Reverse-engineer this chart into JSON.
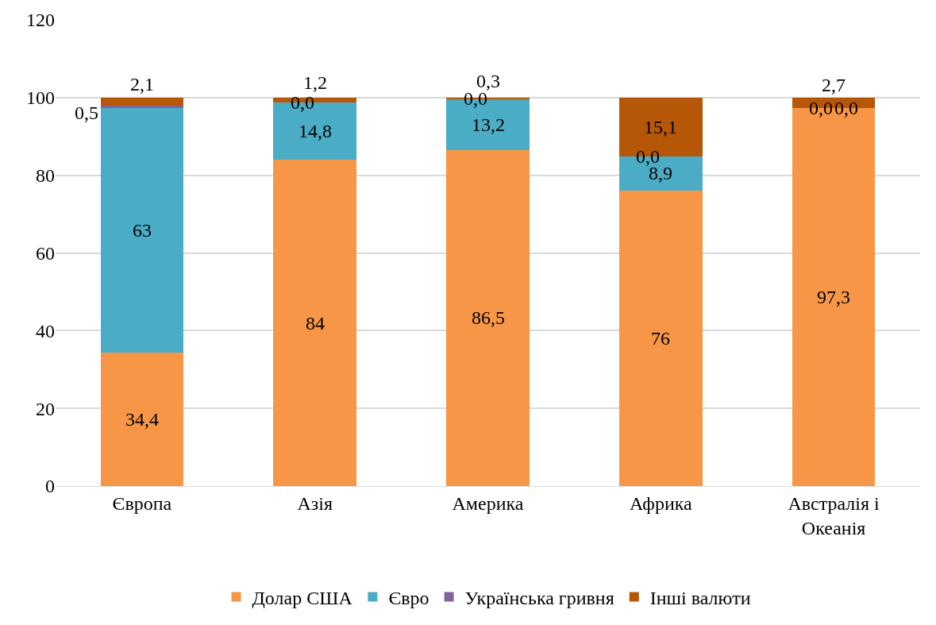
{
  "chart_data": {
    "type": "bar",
    "stacked": true,
    "categories": [
      "Європа",
      "Азія",
      "Америка",
      "Африка",
      "Австралія і Океанія"
    ],
    "series": [
      {
        "name": "Долар США",
        "color": "#f79646",
        "values": [
          34.4,
          84,
          86.5,
          76,
          97.3
        ],
        "value_labels": [
          "34,4",
          "84",
          "86,5",
          "76",
          "97,3"
        ]
      },
      {
        "name": "Євро",
        "color": "#4bacc6",
        "values": [
          63,
          14.8,
          13.2,
          8.9,
          0.0
        ],
        "value_labels": [
          "63",
          "14,8",
          "13,2",
          "8,9",
          "0,0"
        ]
      },
      {
        "name": "Українська гривня",
        "color": "#8064a2",
        "values": [
          0.5,
          0.0,
          0.0,
          0.0,
          0.0
        ],
        "value_labels": [
          "0,5",
          "0,0",
          "0,0",
          "0,0",
          "0,0"
        ]
      },
      {
        "name": "Інші валюти",
        "color": "#b65708",
        "values": [
          2.1,
          1.2,
          0.3,
          15.1,
          2.7
        ],
        "value_labels": [
          "2,1",
          "1,2",
          "0,3",
          "15,1",
          "2,7"
        ]
      }
    ],
    "ylim": [
      0,
      120
    ],
    "yticks": [
      0,
      20,
      40,
      60,
      80,
      100,
      120
    ],
    "grid": "y",
    "legend": "bottom"
  }
}
